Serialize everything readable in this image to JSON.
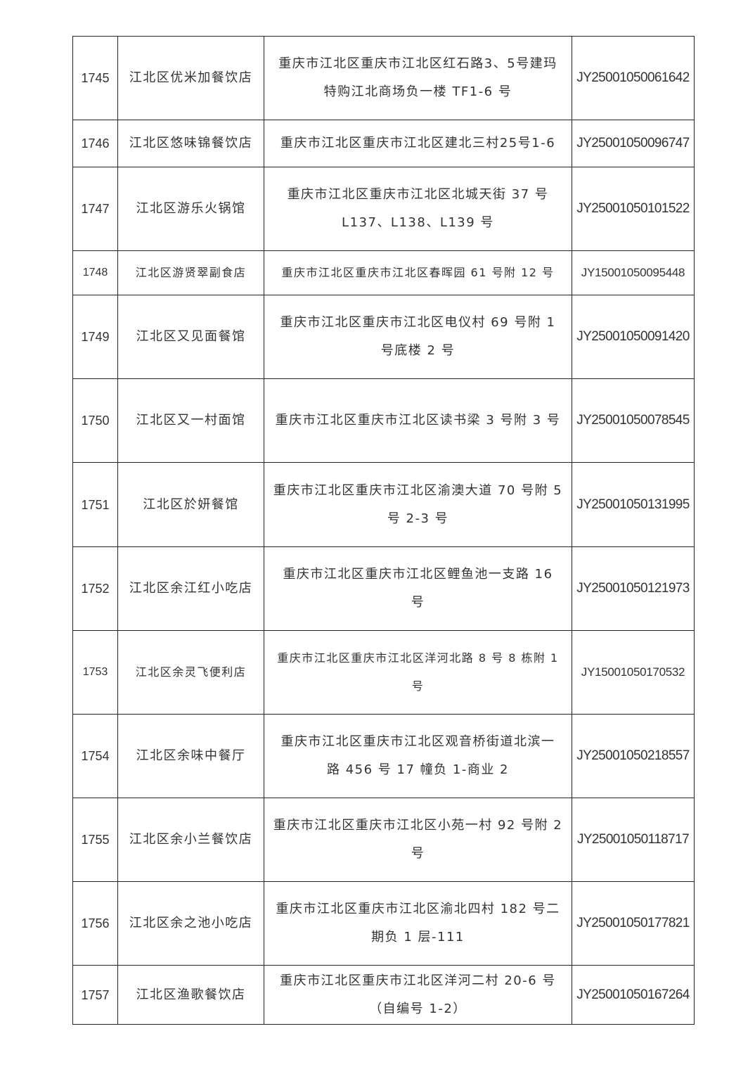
{
  "table": {
    "rows": [
      {
        "no": "1745",
        "name": "江北区优米加餐饮店",
        "address": [
          "重庆市江北区重庆市江北区红石路3、5号建玛",
          "特购江北商场负一楼 TF1-6 号"
        ],
        "license": "JY25001050061642",
        "h": 119
      },
      {
        "no": "1746",
        "name": "江北区悠味锦餐饮店",
        "address": [
          "重庆市江北区重庆市江北区建北三村25号1-6"
        ],
        "license": "JY25001050096747",
        "h": 67
      },
      {
        "no": "1747",
        "name": "江北区游乐火锅馆",
        "address": [
          "重庆市江北区重庆市江北区北城天街 37 号",
          "L137、L138、L139 号"
        ],
        "license": "JY25001050101522",
        "h": 119
      },
      {
        "no": "1748",
        "name": "江北区游贤翠副食店",
        "address": [
          "重庆市江北区重庆市江北区春晖园 61 号附 12 号"
        ],
        "license": "JY15001050095448",
        "h": 63,
        "small": true
      },
      {
        "no": "1749",
        "name": "江北区又见面餐馆",
        "address": [
          "重庆市江北区重庆市江北区电仪村 69 号附 1",
          "号底楼 2 号"
        ],
        "license": "JY25001050091420",
        "h": 119
      },
      {
        "no": "1750",
        "name": "江北区又一村面馆",
        "address": [
          "重庆市江北区重庆市江北区读书梁 3 号附 3 号"
        ],
        "license": "JY25001050078545",
        "h": 119
      },
      {
        "no": "1751",
        "name": "江北区於妍餐馆",
        "address": [
          "重庆市江北区重庆市江北区渝澳大道 70 号附 5",
          "号 2-3 号"
        ],
        "license": "JY25001050131995",
        "h": 120
      },
      {
        "no": "1752",
        "name": "江北区余江红小吃店",
        "address": [
          "重庆市江北区重庆市江北区鲤鱼池一支路 16",
          "号"
        ],
        "license": "JY25001050121973",
        "h": 119
      },
      {
        "no": "1753",
        "name": "江北区余灵飞便利店",
        "address": [
          "重庆市江北区重庆市江北区洋河北路 8 号 8 栋附 1",
          "号"
        ],
        "license": "JY15001050170532",
        "h": 119,
        "small": true
      },
      {
        "no": "1754",
        "name": "江北区余味中餐厅",
        "address": [
          "重庆市江北区重庆市江北区观音桥街道北滨一",
          "路 456 号 17 幢负 1-商业 2"
        ],
        "license": "JY25001050218557",
        "h": 119
      },
      {
        "no": "1755",
        "name": "江北区余小兰餐饮店",
        "address": [
          "重庆市江北区重庆市江北区小苑一村 92 号附 2",
          "号"
        ],
        "license": "JY25001050118717",
        "h": 119
      },
      {
        "no": "1756",
        "name": "江北区余之池小吃店",
        "address": [
          "重庆市江北区重庆市江北区渝北四村 182 号二",
          "期负 1 层-111"
        ],
        "license": "JY25001050177821",
        "h": 119
      },
      {
        "no": "1757",
        "name": "江北区渔歌餐饮店",
        "address": [
          "重庆市江北区重庆市江北区洋河二村 20-6 号",
          "（自编号 1-2）"
        ],
        "license": "JY25001050167264",
        "h": 84
      }
    ]
  }
}
